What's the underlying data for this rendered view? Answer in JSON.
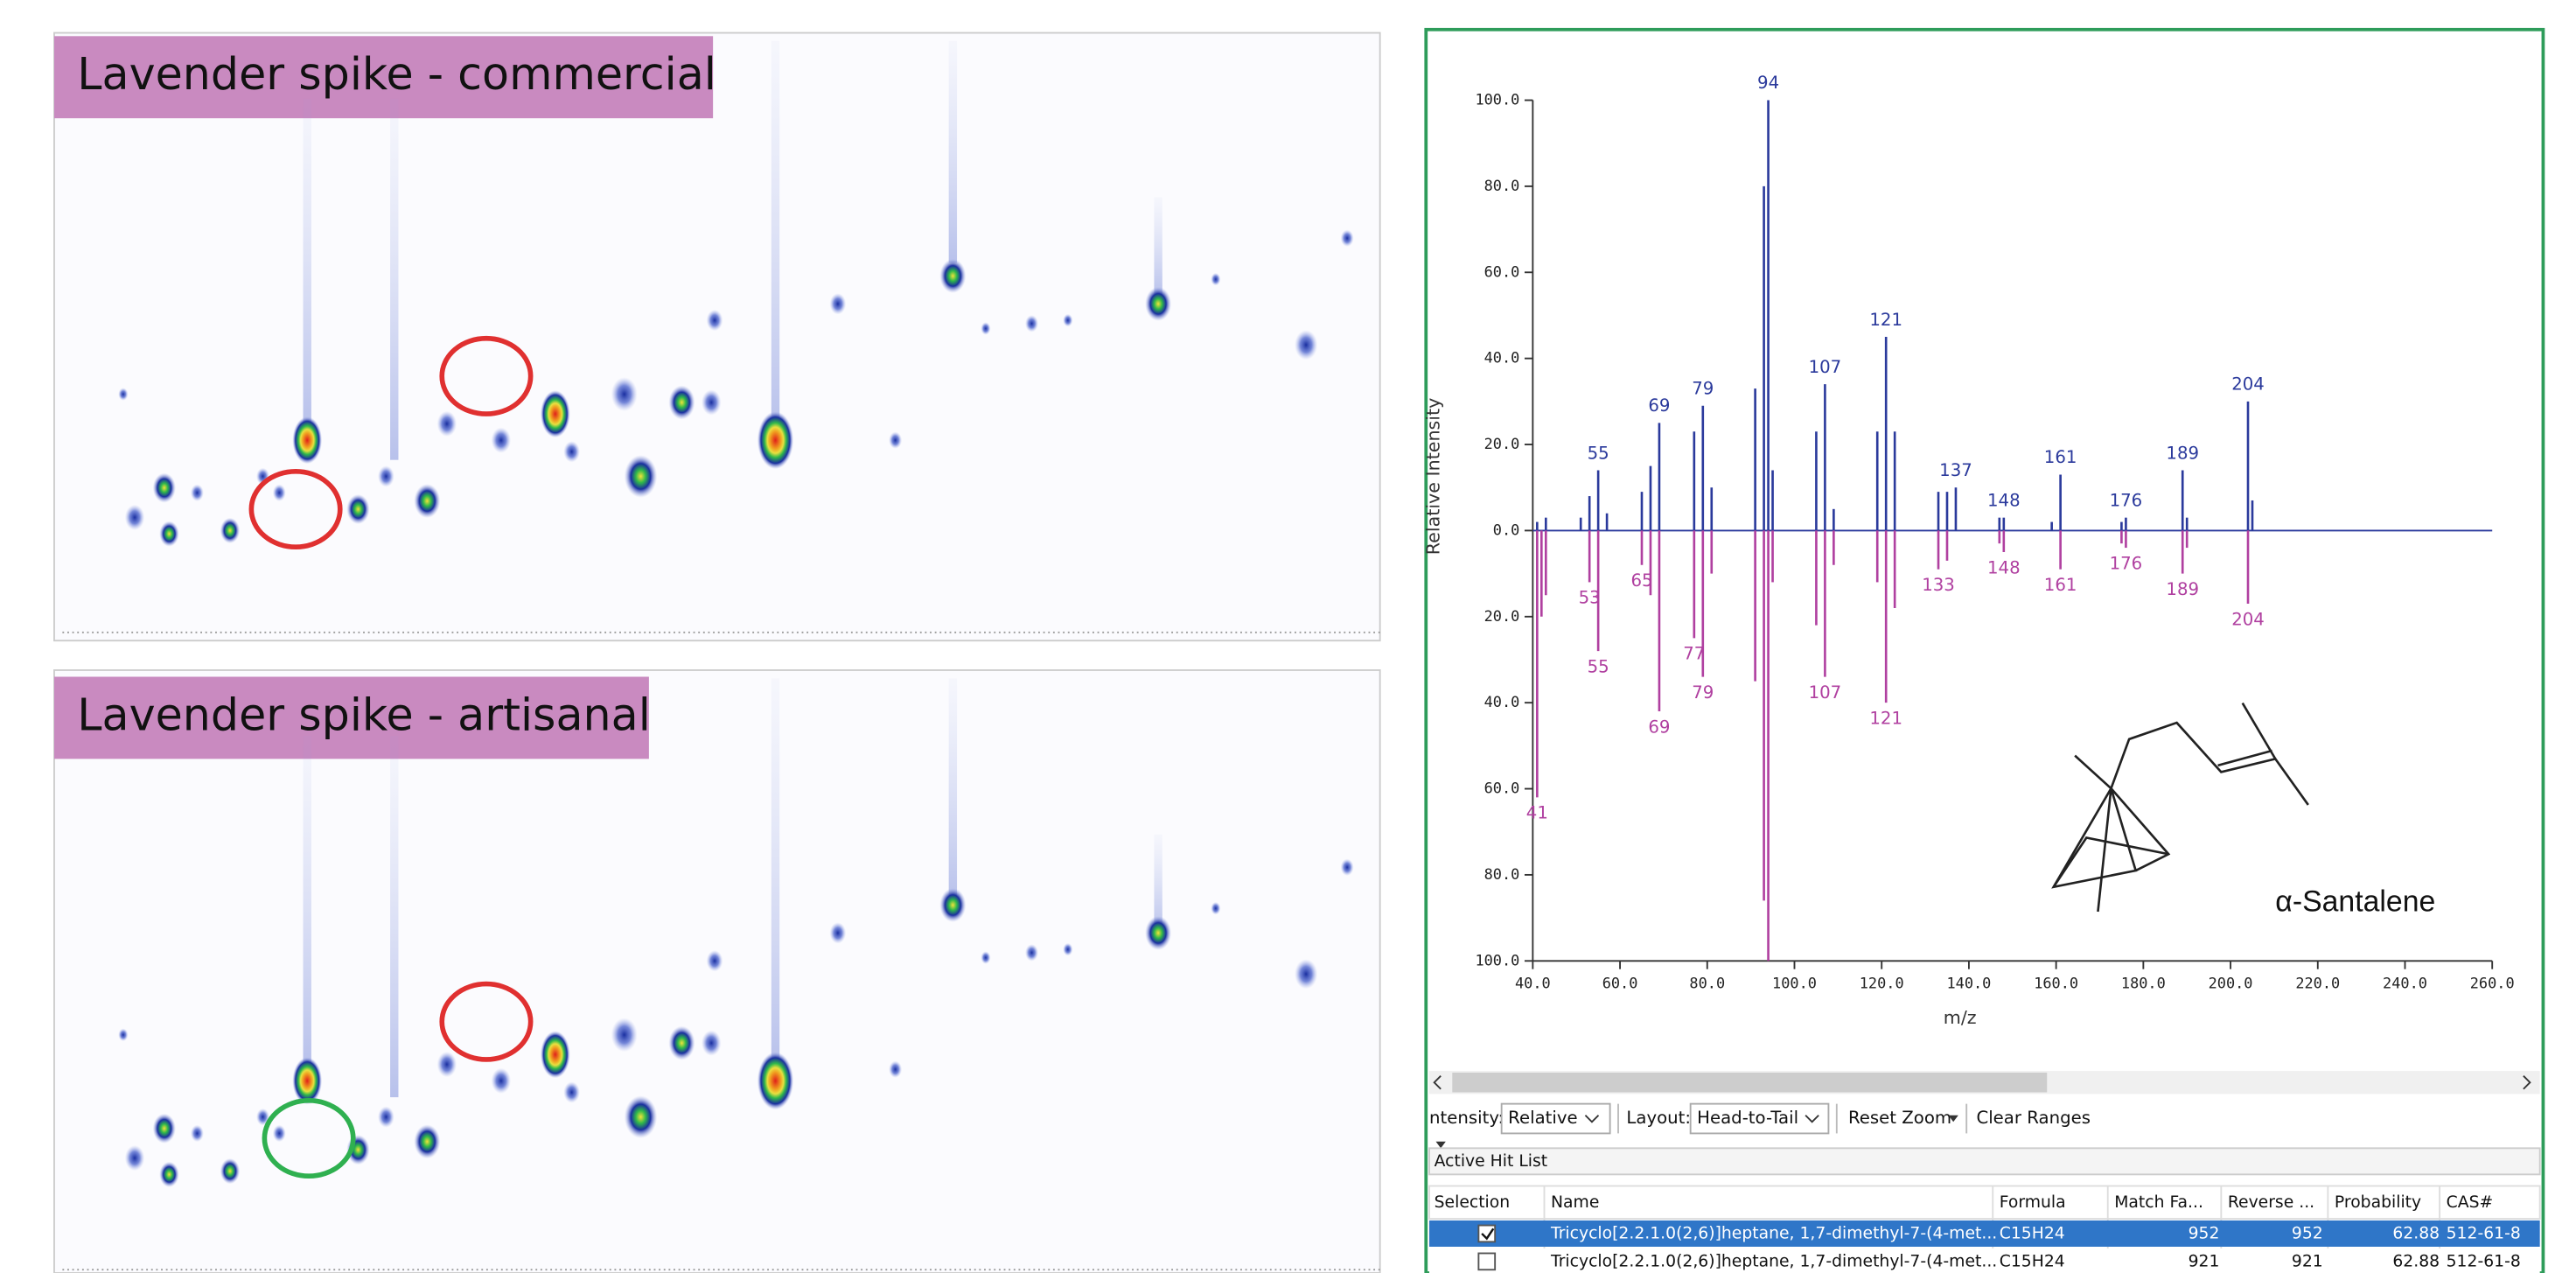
{
  "panels": [
    {
      "label": "Lavender spike - commercial"
    },
    {
      "label": "Lavender spike - artisanal"
    }
  ],
  "chart_data": {
    "type": "bar",
    "x_label": "m/z",
    "y_label": "Relative Intensity",
    "xlim": [
      40,
      260
    ],
    "xticks": [
      {
        "value": 40,
        "label": "40.0"
      },
      {
        "value": 60,
        "label": "60.0"
      },
      {
        "value": 80,
        "label": "80.0"
      },
      {
        "value": 100,
        "label": "100.0"
      },
      {
        "value": 120,
        "label": "120.0"
      },
      {
        "value": 140,
        "label": "140.0"
      },
      {
        "value": 160,
        "label": "160.0"
      },
      {
        "value": 180,
        "label": "180.0"
      },
      {
        "value": 200,
        "label": "200.0"
      },
      {
        "value": 220,
        "label": "220.0"
      },
      {
        "value": 240,
        "label": "240.0"
      },
      {
        "value": 260,
        "label": "260.0"
      }
    ],
    "ylim": [
      -100,
      100
    ],
    "yticks": [
      {
        "value": 100,
        "label": "100.0"
      },
      {
        "value": 80,
        "label": "80.0"
      },
      {
        "value": 60,
        "label": "60.0"
      },
      {
        "value": 40,
        "label": "40.0"
      },
      {
        "value": 20,
        "label": "20.0"
      },
      {
        "value": 0,
        "label": "0.0"
      },
      {
        "value": -20,
        "label": "20.0"
      },
      {
        "value": -40,
        "label": "40.0"
      },
      {
        "value": -60,
        "label": "60.0"
      },
      {
        "value": -80,
        "label": "80.0"
      },
      {
        "value": -100,
        "label": "100.0"
      }
    ],
    "series": [
      {
        "color": "#2b3a9c",
        "labeled_x": [
          55,
          69,
          79,
          94,
          107,
          121,
          137,
          148,
          161,
          176,
          189,
          204
        ],
        "labeled_values": [
          14,
          25,
          29,
          100,
          34,
          45,
          10,
          3,
          13,
          3,
          14,
          30
        ],
        "x": [
          41,
          43,
          51,
          53,
          57,
          65,
          67,
          77,
          81,
          91,
          93,
          95,
          105,
          109,
          119,
          123,
          133,
          135,
          147,
          159,
          175,
          190,
          205
        ],
        "values": [
          2,
          3,
          3,
          8,
          4,
          9,
          15,
          23,
          10,
          33,
          80,
          14,
          23,
          5,
          23,
          23,
          9,
          9,
          3,
          2,
          2,
          3,
          7
        ]
      },
      {
        "color": "#b040a0",
        "labeled_x": [
          41,
          53,
          55,
          65,
          69,
          77,
          79,
          107,
          121,
          133,
          148,
          161,
          176,
          189,
          204
        ],
        "labeled_values": [
          -62,
          -12,
          -28,
          -8,
          -42,
          -25,
          -34,
          -34,
          -40,
          -9,
          -5,
          -9,
          -4,
          -10,
          -17
        ],
        "x": [
          42,
          43,
          67,
          81,
          91,
          93,
          94,
          95,
          105,
          109,
          119,
          123,
          135,
          147,
          175,
          190
        ],
        "values": [
          -20,
          -15,
          -15,
          -10,
          -35,
          -86,
          -100,
          -12,
          -22,
          -8,
          -12,
          -18,
          -7,
          -3,
          -3,
          -4
        ]
      }
    ]
  },
  "compound_label": "α-Santalene",
  "toolbar": {
    "intensity_label": "ntensity:",
    "intensity_value": "Relative",
    "layout_label": "Layout:",
    "layout_value": "Head-to-Tail",
    "reset_zoom": "Reset Zoom",
    "clear_ranges": "Clear Ranges"
  },
  "hit_list": {
    "title": "Active Hit List",
    "columns": [
      "Selection",
      "Name",
      "Formula",
      "Match Fa...",
      "Reverse ...",
      "Probability",
      "CAS#"
    ],
    "rows": [
      {
        "selected": true,
        "cells": [
          "Tricyclo[2.2.1.0(2,6)]heptane, 1,7-dimethyl-7-(4-met...",
          "C15H24",
          952,
          952,
          62.88,
          "512-61-8"
        ]
      },
      {
        "selected": false,
        "cells": [
          "Tricyclo[2.2.1.0(2,6)]heptane, 1,7-dimethyl-7-(4-met...",
          "C15H24",
          921,
          921,
          62.88,
          "512-61-8"
        ]
      }
    ]
  }
}
